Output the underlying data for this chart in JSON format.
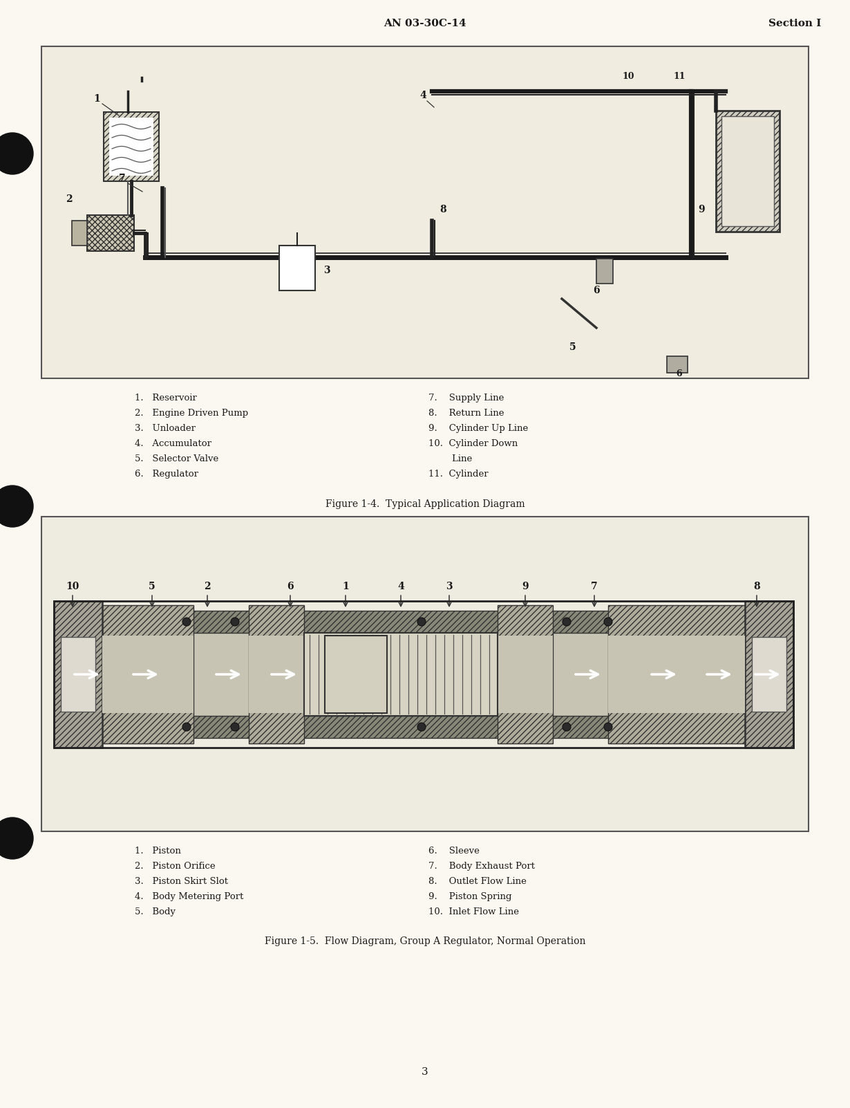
{
  "bg_color": "#faf8f0",
  "header_text": "AN 03-30C-14",
  "header_right": "Section I",
  "page_number": "3",
  "fig1_caption": "Figure 1-4.  Typical Application Diagram",
  "fig2_caption": "Figure 1-5.  Flow Diagram, Group A Regulator, Normal Operation",
  "legend1_col1": [
    "1.   Reservoir",
    "2.   Engine Driven Pump",
    "3.   Unloader",
    "4.   Accumulator",
    "5.   Selector Valve",
    "6.   Regulator"
  ],
  "legend1_col2": [
    "7.    Supply Line",
    "8.    Return Line",
    "9.    Cylinder Up Line",
    "10.  Cylinder Down",
    "        Line",
    "11.  Cylinder"
  ],
  "legend2_col1": [
    "1.   Piston",
    "2.   Piston Orifice",
    "3.   Piston Skirt Slot",
    "4.   Body Metering Port",
    "5.   Body"
  ],
  "legend2_col2": [
    "6.    Sleeve",
    "7.    Body Exhaust Port",
    "8.    Outlet Flow Line",
    "9.    Piston Spring",
    "10.  Inlet Flow Line"
  ],
  "text_color": "#1a1a1a",
  "fig_border_color": "#555555"
}
